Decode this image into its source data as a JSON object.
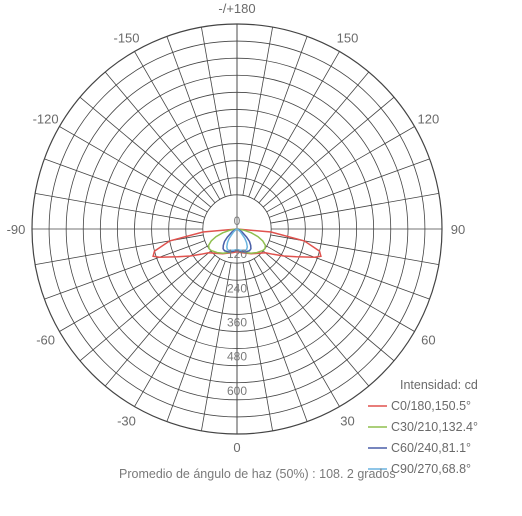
{
  "chart_data": {
    "type": "polar",
    "unit_label": "Intensidad: cd",
    "footer": "Promedio de ángulo de haz (50%) : 108. 2 grados",
    "angle_labels": [
      {
        "deg": 180,
        "text": "-/+180"
      },
      {
        "deg": -150,
        "text": "-150"
      },
      {
        "deg": 150,
        "text": "150"
      },
      {
        "deg": -120,
        "text": "-120"
      },
      {
        "deg": 120,
        "text": "120"
      },
      {
        "deg": -90,
        "text": "-90"
      },
      {
        "deg": 90,
        "text": "90"
      },
      {
        "deg": -60,
        "text": "-60"
      },
      {
        "deg": 60,
        "text": "60"
      },
      {
        "deg": -30,
        "text": "-30"
      },
      {
        "deg": 30,
        "text": "30"
      },
      {
        "deg": 0,
        "text": "0"
      }
    ],
    "radial_labels": [
      "0",
      "120",
      "240",
      "360",
      "480",
      "600"
    ],
    "radial_values": [
      0,
      120,
      240,
      360,
      480,
      600
    ],
    "r_max": 720,
    "series": [
      {
        "name": "C0/180,150.5°",
        "color": "#e0524e",
        "points": [
          [
            0,
            80
          ],
          [
            10,
            84
          ],
          [
            20,
            90
          ],
          [
            30,
            100
          ],
          [
            40,
            112
          ],
          [
            50,
            130
          ],
          [
            55,
            155
          ],
          [
            60,
            190
          ],
          [
            65,
            230
          ],
          [
            70,
            290
          ],
          [
            72,
            310
          ],
          [
            75,
            300
          ],
          [
            80,
            240
          ],
          [
            85,
            120
          ],
          [
            90,
            0
          ]
        ]
      },
      {
        "name": "C30/210,132.4°",
        "color": "#8fbf4f",
        "points": [
          [
            0,
            75
          ],
          [
            10,
            80
          ],
          [
            20,
            88
          ],
          [
            30,
            98
          ],
          [
            40,
            108
          ],
          [
            50,
            118
          ],
          [
            55,
            120
          ],
          [
            60,
            115
          ],
          [
            65,
            100
          ],
          [
            70,
            78
          ],
          [
            75,
            52
          ],
          [
            80,
            26
          ],
          [
            85,
            8
          ],
          [
            90,
            0
          ]
        ]
      },
      {
        "name": "C60/240,81.1°",
        "color": "#4a5fa8",
        "points": [
          [
            0,
            75
          ],
          [
            10,
            80
          ],
          [
            20,
            86
          ],
          [
            30,
            88
          ],
          [
            35,
            85
          ],
          [
            40,
            75
          ],
          [
            45,
            62
          ],
          [
            50,
            44
          ],
          [
            60,
            20
          ],
          [
            70,
            6
          ],
          [
            80,
            0
          ],
          [
            90,
            0
          ]
        ]
      },
      {
        "name": "C90/270,68.8°",
        "color": "#6ab4e0",
        "points": [
          [
            0,
            72
          ],
          [
            10,
            76
          ],
          [
            20,
            80
          ],
          [
            25,
            80
          ],
          [
            30,
            72
          ],
          [
            35,
            58
          ],
          [
            40,
            42
          ],
          [
            50,
            16
          ],
          [
            60,
            4
          ],
          [
            70,
            0
          ],
          [
            90,
            0
          ]
        ]
      }
    ]
  }
}
